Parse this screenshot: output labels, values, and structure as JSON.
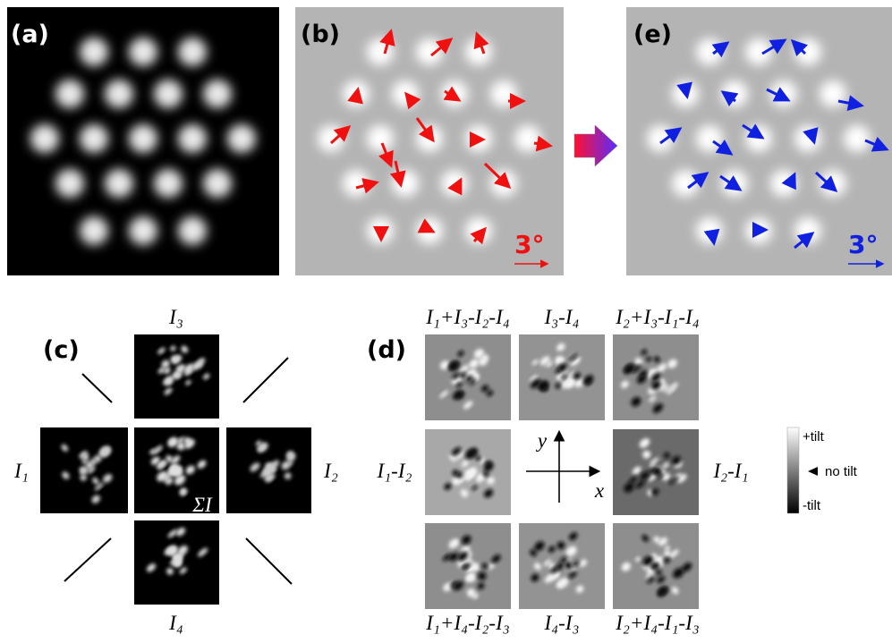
{
  "panels": {
    "a": {
      "label": "(a)"
    },
    "b": {
      "label": "(b)",
      "scale": "3°"
    },
    "e": {
      "label": "(e)",
      "scale": "3°"
    },
    "c": {
      "label": "(c)",
      "top": "I₃",
      "left": "I₁",
      "right": "I₂",
      "bottom": "I₄",
      "center": "ΣI"
    },
    "d": {
      "label": "(d)",
      "top": [
        "I₁+I₃-I₂-I₄",
        "I₃-I₄",
        "I₂+I₃-I₁-I₄"
      ],
      "left": "I₁-I₂",
      "right": "I₂-I₁",
      "bottom": [
        "I₁+I₄-I₂-I₃",
        "I₄-I₃",
        "I₂+I₄-I₁-I₃"
      ],
      "axes": {
        "x": "x",
        "y": "y"
      }
    }
  },
  "colorbar": {
    "labels": [
      "+tilt",
      "no tilt",
      "-tilt"
    ]
  }
}
